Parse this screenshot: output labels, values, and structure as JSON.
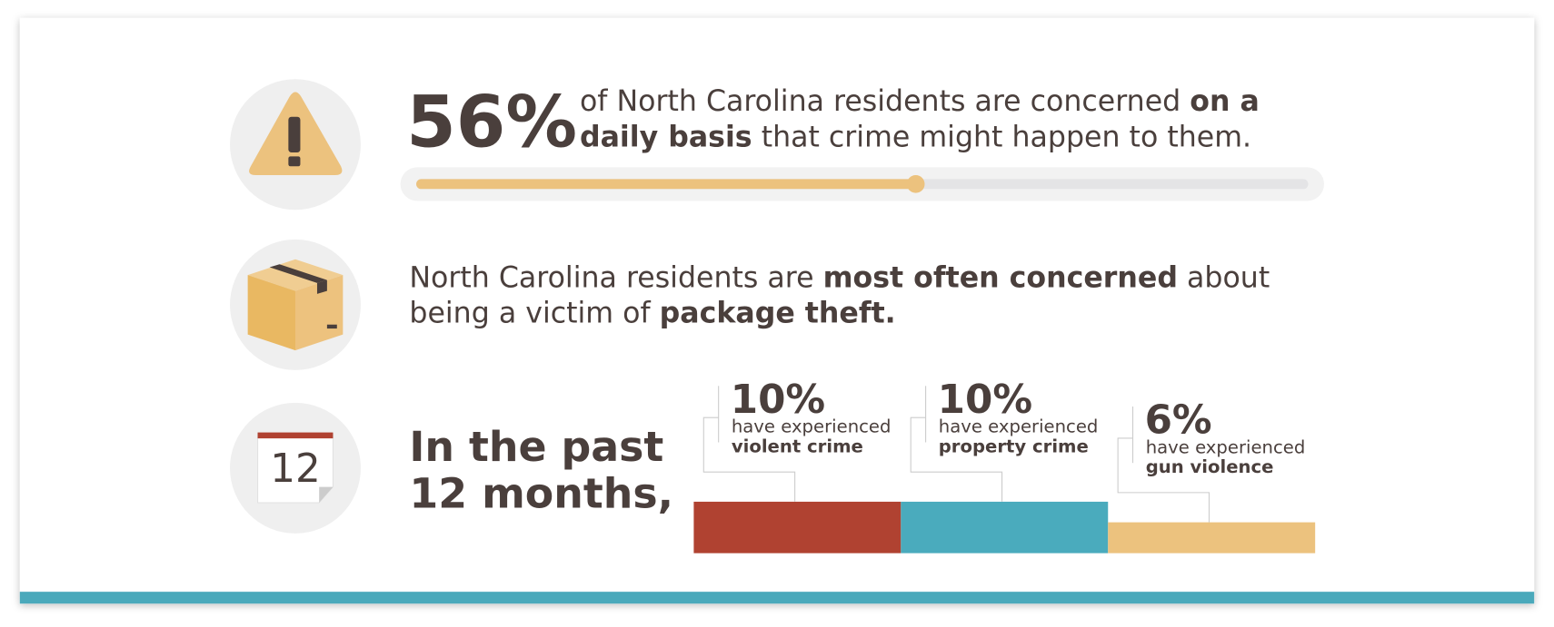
{
  "concern": {
    "value": 56,
    "value_label": "56%",
    "color": "#ecc27e",
    "lines": [
      [
        {
          "text": "of North Carolina residents are concerned ",
          "bold": false
        },
        {
          "text": "on a",
          "bold": true
        }
      ],
      [
        {
          "text": "daily basis",
          "bold": true
        },
        {
          "text": " that crime might happen to them.",
          "bold": false
        }
      ]
    ]
  },
  "package": {
    "lines": [
      [
        {
          "text": "North Carolina residents are ",
          "bold": false
        },
        {
          "text": "most often concerned",
          "bold": true
        },
        {
          "text": " about",
          "bold": false
        }
      ],
      [
        {
          "text": "being a victim of ",
          "bold": false
        },
        {
          "text": "package theft.",
          "bold": true
        }
      ]
    ]
  },
  "past_year": {
    "calendar_day": "12",
    "heading": [
      "In the past",
      "12 months,"
    ],
    "items": [
      {
        "value": 10,
        "value_label": "10%",
        "text": "have experienced",
        "category": "violent crime",
        "color": "#b04231"
      },
      {
        "value": 10,
        "value_label": "10%",
        "text": "have experienced",
        "category": "property crime",
        "color": "#4aabbd"
      },
      {
        "value": 6,
        "value_label": "6%",
        "text": "have experienced",
        "category": "gun violence",
        "color": "#ecc27e"
      }
    ]
  }
}
